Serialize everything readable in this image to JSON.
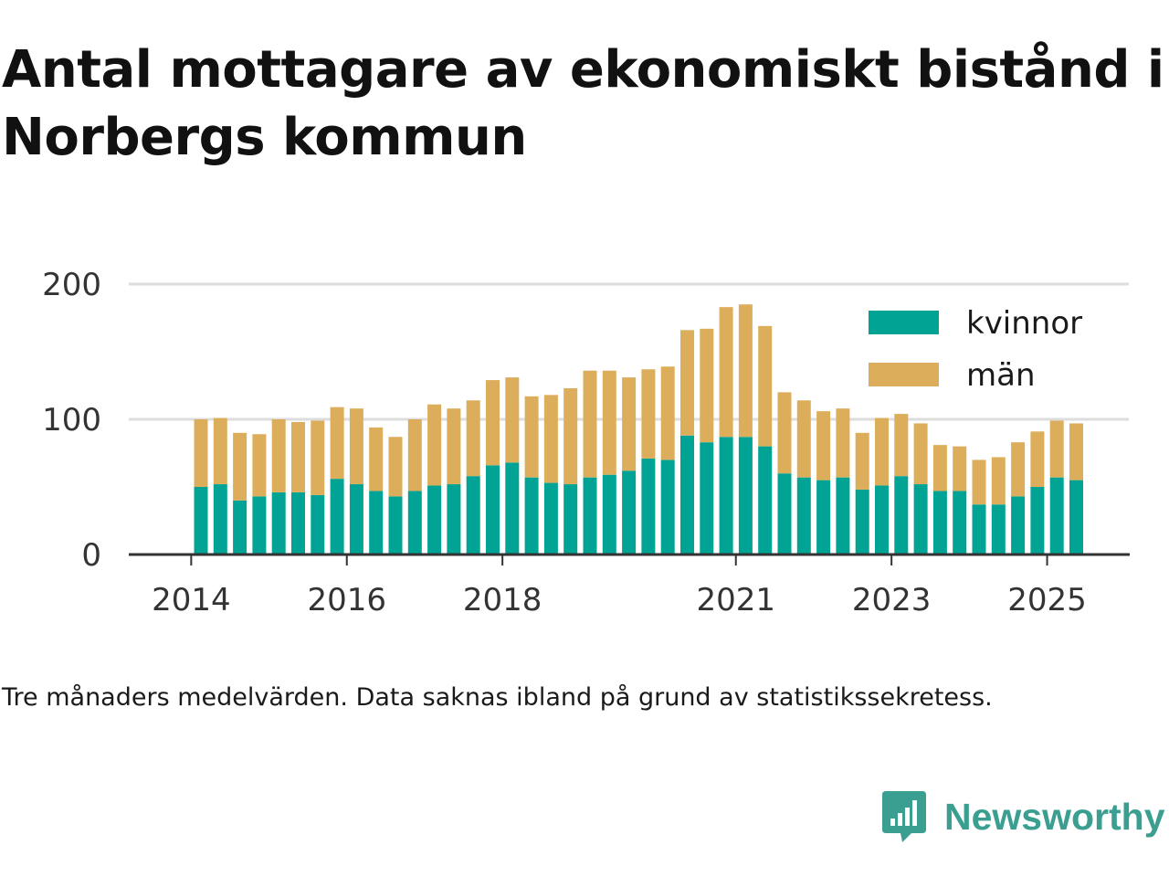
{
  "title": "Antal mottagare av ekonomiskt bistånd i Norbergs kommun",
  "caption": "Tre månaders medelvärden. Data saknas ibland på grund av statistikssekretess.",
  "brand": {
    "name": "Newsworthy",
    "icon": "newsworthy-logo-icon",
    "color": "#3a9e90"
  },
  "colors": {
    "kvinnor": "#00a394",
    "man": "#dcae5b",
    "grid": "#dddddd",
    "axis": "#333333"
  },
  "chart_data": {
    "type": "bar",
    "stacked": true,
    "title": "Antal mottagare av ekonomiskt bistånd i Norbergs kommun",
    "xlabel": "",
    "ylabel": "",
    "ylim": [
      0,
      200
    ],
    "yticks": [
      0,
      100,
      200
    ],
    "grid": true,
    "legend_position": "top-right",
    "xticks": [
      {
        "label": "2014",
        "index": -1
      },
      {
        "label": "2016",
        "index": 7
      },
      {
        "label": "2018",
        "index": 15
      },
      {
        "label": "2021",
        "index": 27
      },
      {
        "label": "2023",
        "index": 35
      },
      {
        "label": "2025",
        "index": 43
      }
    ],
    "categories": [
      "2014-Q2",
      "2014-Q3",
      "2014-Q4",
      "2015-Q1",
      "2015-Q2",
      "2015-Q3",
      "2015-Q4",
      "2016-Q1",
      "2016-Q2",
      "2016-Q3",
      "2016-Q4",
      "2017-Q1",
      "2017-Q2",
      "2017-Q3",
      "2017-Q4",
      "2018-Q1",
      "2018-Q2",
      "2018-Q3",
      "2018-Q4",
      "2019-Q1",
      "2019-Q2",
      "2019-Q3",
      "2019-Q4",
      "2020-Q1",
      "2020-Q2",
      "2020-Q3",
      "2020-Q4",
      "2021-Q1",
      "2021-Q2",
      "2021-Q3",
      "2021-Q4",
      "2022-Q1",
      "2022-Q2",
      "2022-Q3",
      "2022-Q4",
      "2023-Q1",
      "2023-Q2",
      "2023-Q3",
      "2023-Q4",
      "2024-Q1",
      "2024-Q2",
      "2024-Q3",
      "2024-Q4",
      "2025-Q1",
      "2025-Q2",
      "2025-Q3"
    ],
    "series": [
      {
        "name": "kvinnor",
        "color": "#00a394",
        "values": [
          50,
          52,
          40,
          43,
          46,
          46,
          44,
          56,
          52,
          47,
          43,
          47,
          51,
          52,
          58,
          66,
          68,
          57,
          53,
          52,
          57,
          59,
          62,
          71,
          70,
          88,
          83,
          87,
          87,
          80,
          60,
          57,
          55,
          57,
          48,
          51,
          58,
          52,
          47,
          47,
          37,
          37,
          43,
          50,
          57,
          55
        ]
      },
      {
        "name": "män",
        "color": "#dcae5b",
        "values": [
          50,
          49,
          50,
          46,
          54,
          52,
          55,
          53,
          56,
          47,
          44,
          53,
          60,
          56,
          56,
          63,
          63,
          60,
          65,
          71,
          79,
          77,
          69,
          66,
          69,
          78,
          84,
          96,
          98,
          89,
          60,
          57,
          51,
          51,
          42,
          50,
          46,
          45,
          34,
          33,
          33,
          35,
          40,
          41,
          42,
          42
        ]
      }
    ]
  }
}
